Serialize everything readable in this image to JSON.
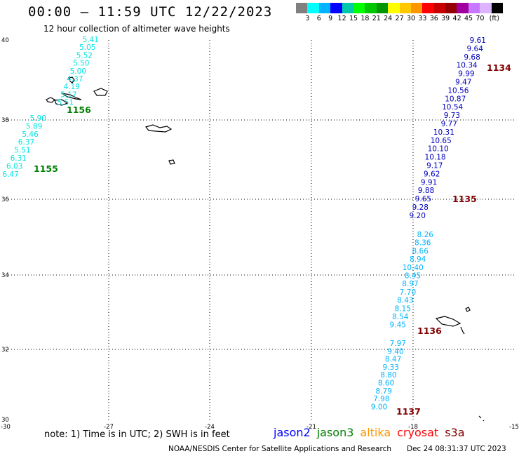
{
  "title": "00:00 – 11:59 UTC 12/22/2023",
  "subtitle": "12 hour collection of altimeter wave heights",
  "scale": {
    "colors": [
      "#808080",
      "#00ffff",
      "#00b4ff",
      "#0000ff",
      "#00c8aa",
      "#00ff00",
      "#00c800",
      "#009600",
      "#ffff00",
      "#ffc800",
      "#ff9600",
      "#ff0000",
      "#c80000",
      "#960000",
      "#a000a0",
      "#c878ff",
      "#dcb4ff",
      "#000000"
    ],
    "labels": [
      "3",
      "6",
      "9",
      "12",
      "15",
      "18",
      "21",
      "24",
      "27",
      "30",
      "33",
      "36",
      "39",
      "42",
      "45",
      "70",
      "(ft)"
    ]
  },
  "axes": {
    "lon_labels": [
      "-30",
      "-27",
      "-24",
      "-21",
      "-18",
      "-15"
    ],
    "lat_labels": [
      "40",
      "38",
      "36",
      "34",
      "32",
      "30"
    ]
  },
  "tracks": [
    {
      "name": "track-1156-north",
      "color": "#00e5e5",
      "values": [
        "5.41",
        "5.05",
        "5.52",
        "5.50",
        "5.00",
        "4.37",
        "4.19",
        "5.17",
        "5.51"
      ]
    },
    {
      "name": "track-1155",
      "color": "#00e5e5",
      "values": [
        "5.90",
        "5.89",
        "5.46",
        "6.37",
        "5.51",
        "6.31",
        "6.03",
        "6.47"
      ]
    },
    {
      "name": "track-1134-1135",
      "color": "#0000c0",
      "values": [
        "9.61",
        "9.64",
        "9.68",
        "10.34",
        "9.99",
        "9.47",
        "10.56",
        "10.87",
        "10.54",
        "9.73",
        "9.77",
        "10.31",
        "10.65",
        "10.10",
        "10.18",
        "9.17",
        "9.62",
        "9.91",
        "9.88",
        "9.65",
        "9.28",
        "9.20"
      ]
    },
    {
      "name": "track-1135-1136",
      "color": "#00b4ff",
      "values": [
        "8.26",
        "8.36",
        "8.66",
        "8.94",
        "10.40",
        "8.45",
        "8.97",
        "7.70",
        "8.43",
        "8.15",
        "8.54",
        "9.45"
      ]
    },
    {
      "name": "track-1136-1137",
      "color": "#00b4ff",
      "values": [
        "7.97",
        "9.40",
        "8.47",
        "9.33",
        "8.80",
        "8.60",
        "8.79",
        "7.98",
        "9.00"
      ]
    }
  ],
  "pass_labels": [
    {
      "text": "1156",
      "color": "#008000"
    },
    {
      "text": "1155",
      "color": "#008000"
    },
    {
      "text": "1134",
      "color": "#800000"
    },
    {
      "text": "1135",
      "color": "#800000"
    },
    {
      "text": "1136",
      "color": "#800000"
    },
    {
      "text": "1137",
      "color": "#800000"
    }
  ],
  "note": "note:  1) Time is in UTC; 2) SWH is in feet",
  "legend": [
    {
      "name": "jason2",
      "color": "#0000ff"
    },
    {
      "name": "jason3",
      "color": "#008000"
    },
    {
      "name": "altika",
      "color": "#ff9600"
    },
    {
      "name": "cryosat",
      "color": "#ff0000"
    },
    {
      "name": "s3a",
      "color": "#800000"
    }
  ],
  "footer_left": "NOAA/NESDIS Center for Satellite Applications and Research",
  "footer_right": "Dec 24 08:31:37 UTC 2023"
}
